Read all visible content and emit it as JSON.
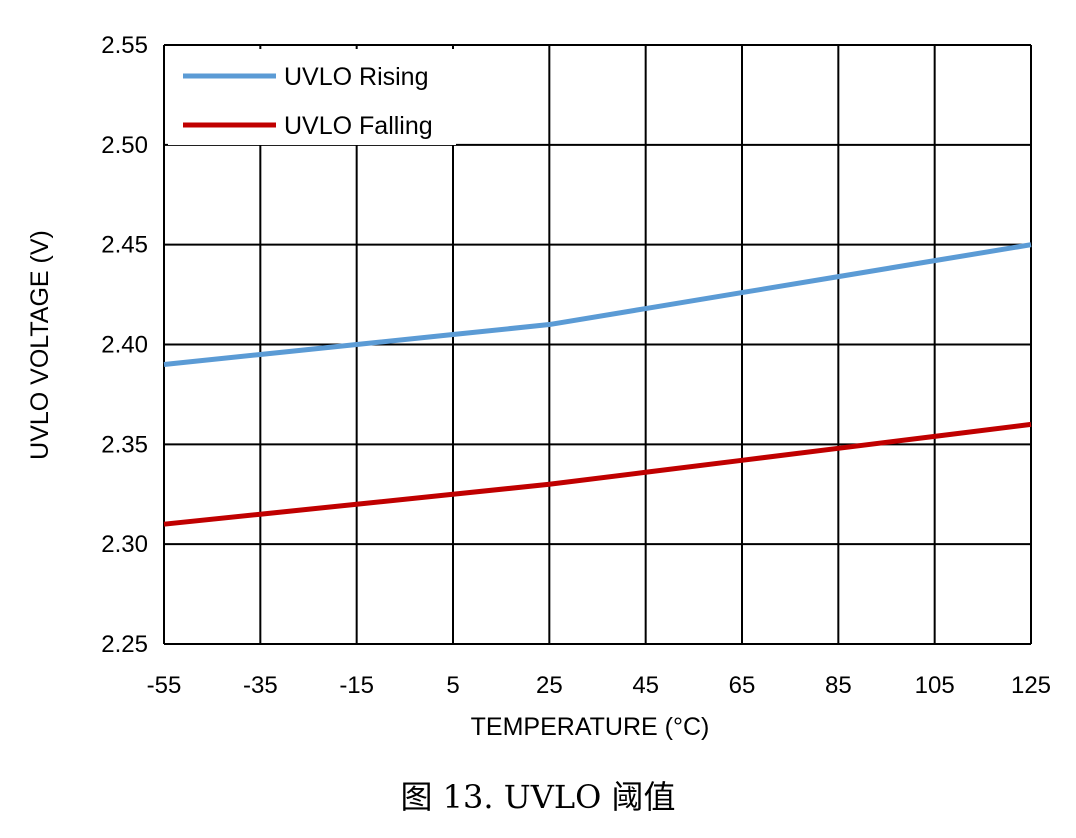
{
  "chart_data": {
    "type": "line",
    "title": "",
    "xlabel": "TEMPERATURE (°C)",
    "ylabel": "UVLO VOLTAGE (V)",
    "x": [
      -55,
      -35,
      -15,
      5,
      25,
      45,
      65,
      85,
      105,
      125
    ],
    "xticks": [
      "-55",
      "-35",
      "-15",
      "5",
      "25",
      "45",
      "65",
      "85",
      "105",
      "125"
    ],
    "yticks": [
      "2.25",
      "2.30",
      "2.35",
      "2.40",
      "2.45",
      "2.50",
      "2.55"
    ],
    "xlim": [
      -55,
      125
    ],
    "ylim": [
      2.25,
      2.55
    ],
    "grid": true,
    "legend_position": "top-left",
    "series": [
      {
        "name": "UVLO Rising",
        "color": "#5B9BD5",
        "values": [
          2.39,
          2.395,
          2.4,
          2.405,
          2.41,
          2.418,
          2.426,
          2.434,
          2.442,
          2.45
        ]
      },
      {
        "name": "UVLO Falling",
        "color": "#C00000",
        "values": [
          2.31,
          2.315,
          2.32,
          2.325,
          2.33,
          2.336,
          2.342,
          2.348,
          2.354,
          2.36
        ]
      }
    ]
  },
  "caption": "图 13. UVLO 阈值"
}
